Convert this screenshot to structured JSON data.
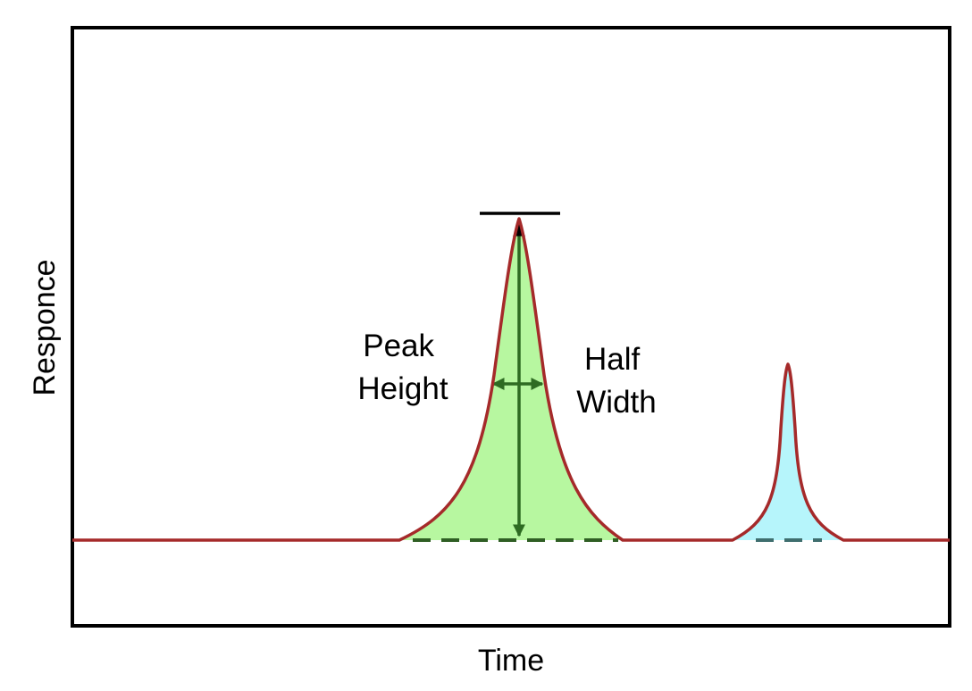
{
  "labels": {
    "x_axis": "Time",
    "y_axis": "Responce",
    "peak_height": [
      "Peak",
      "Height"
    ],
    "half_width": [
      "Half",
      "Width"
    ]
  },
  "colors": {
    "frame": "#000000",
    "signal_line": "#a52a2a",
    "main_peak_fill": "#b7f7a0",
    "secondary_peak_fill": "#b6f5fb",
    "annotation_arrow": "#2e6b22",
    "baseline_dash_main": "#2f5e24",
    "baseline_dash_secondary": "#3f6e6e",
    "peak_cap": "#000000"
  }
}
